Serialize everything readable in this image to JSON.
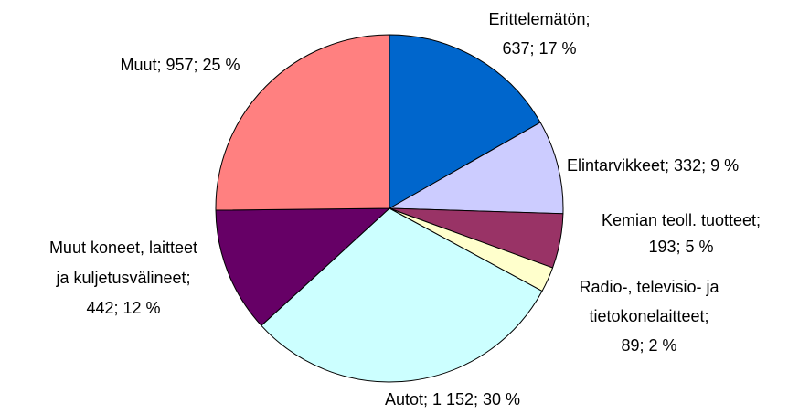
{
  "chart_data": {
    "type": "pie",
    "labels": [
      [
        "Erittelemätön;",
        "637; 17 %"
      ],
      [
        "Elintarvikkeet; 332; 9 %"
      ],
      [
        "Kemian teoll. tuotteet;",
        "193; 5 %"
      ],
      [
        "Radio-, televisio- ja",
        "tietokonelaitteet;",
        "89; 2 %"
      ],
      [
        "Autot; 1 152; 30 %"
      ],
      [
        "Muut koneet, laitteet",
        "ja kuljetusvälineet;",
        "442; 12 %"
      ],
      [
        "Muut; 957; 25 %"
      ]
    ],
    "values": [
      637,
      332,
      193,
      89,
      1152,
      442,
      957
    ],
    "colors": [
      "#0066cc",
      "#ccccff",
      "#993366",
      "#ffffcc",
      "#ccffff",
      "#660066",
      "#ff8080"
    ]
  }
}
